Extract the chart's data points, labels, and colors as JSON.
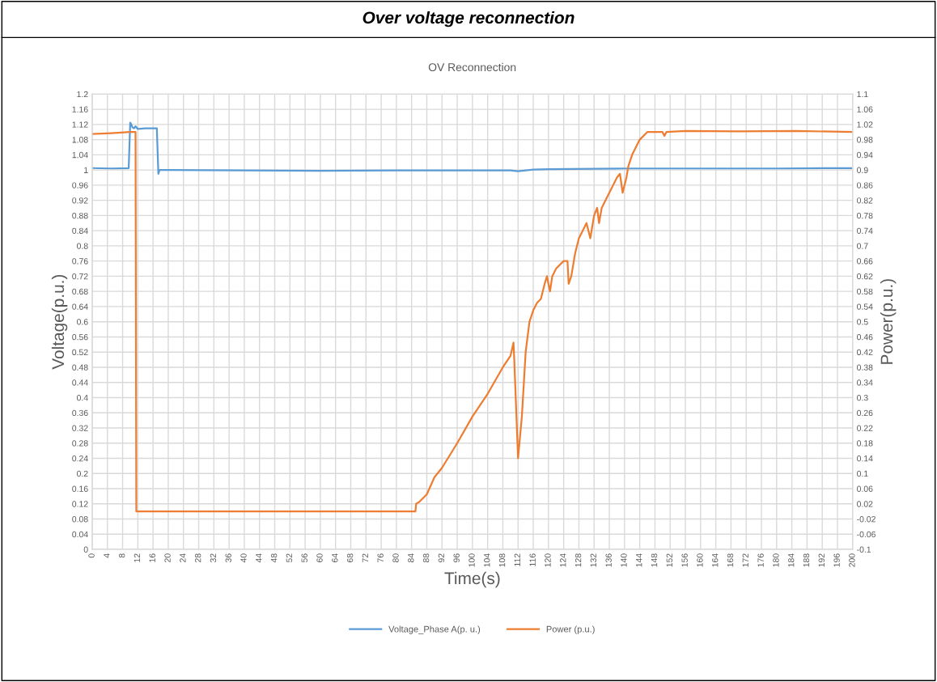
{
  "chart_data": {
    "type": "line",
    "title": "Over voltage reconnection",
    "subtitle": "OV Reconnection",
    "xlabel": "Time(s)",
    "ylabel": "Voltage(p.u.)",
    "y2label": "Power(p.u.)",
    "xlim": [
      0,
      200
    ],
    "xticks": [
      0,
      4,
      8,
      12,
      16,
      20,
      24,
      28,
      32,
      36,
      40,
      44,
      48,
      52,
      56,
      60,
      64,
      68,
      72,
      76,
      80,
      84,
      88,
      92,
      96,
      100,
      104,
      108,
      112,
      116,
      120,
      124,
      128,
      132,
      136,
      140,
      144,
      148,
      152,
      156,
      160,
      164,
      168,
      172,
      176,
      180,
      184,
      188,
      192,
      196,
      200
    ],
    "ylim": [
      0,
      1.2
    ],
    "yticks": [
      0,
      0.04,
      0.08,
      0.12,
      0.16,
      0.2,
      0.24,
      0.28,
      0.32,
      0.36,
      0.4,
      0.44,
      0.48,
      0.52,
      0.56,
      0.6,
      0.64,
      0.68,
      0.72,
      0.76,
      0.8,
      0.84,
      0.88,
      0.92,
      0.96,
      1,
      1.04,
      1.08,
      1.12,
      1.16,
      1.2
    ],
    "y2lim": [
      -0.1,
      1.1
    ],
    "y2ticks": [
      -0.1,
      -0.06,
      -0.02,
      0.02,
      0.06,
      0.1,
      0.14,
      0.18,
      0.22,
      0.26,
      0.3,
      0.34,
      0.38,
      0.42,
      0.46,
      0.5,
      0.54,
      0.58,
      0.62,
      0.66,
      0.7,
      0.74,
      0.78,
      0.82,
      0.86,
      0.9,
      0.94,
      0.98,
      1.02,
      1.06,
      1.1
    ],
    "grid": true,
    "legend": "bottom",
    "marker": "none",
    "line_style": "solid",
    "series": [
      {
        "name": "Voltage_Phase A(p. u.)",
        "color": "#5b9bd5",
        "x": [
          0,
          5,
          9.6,
          10,
          10.3,
          10.6,
          11,
          11.4,
          12,
          14,
          17,
          17.2,
          17.4,
          17.7,
          20,
          40,
          60,
          80,
          100,
          110,
          112,
          116,
          120,
          140,
          160,
          180,
          200
        ],
        "values": [
          1.005,
          1.004,
          1.005,
          1.125,
          1.12,
          1.112,
          1.11,
          1.115,
          1.108,
          1.11,
          1.11,
          1.05,
          0.99,
          1.0,
          1.0,
          0.999,
          0.998,
          0.999,
          0.999,
          0.999,
          0.997,
          1.001,
          1.002,
          1.004,
          1.004,
          1.004,
          1.005
        ]
      },
      {
        "name": "Power (p.u.)",
        "color": "#ed7d31",
        "axis": "y2",
        "x": [
          0,
          5,
          10,
          11,
          11.4,
          11.6,
          20,
          40,
          60,
          80,
          85,
          85.2,
          86,
          88,
          90,
          92,
          96,
          100,
          104,
          108,
          110,
          110.8,
          111,
          112,
          113,
          114,
          115,
          116,
          117,
          118,
          119,
          119.6,
          120.4,
          121,
          122,
          124,
          125,
          125.3,
          126,
          127,
          128,
          129,
          130,
          131,
          132,
          132.8,
          133.3,
          134,
          136,
          137,
          138,
          138.8,
          139.5,
          140.5,
          141,
          142,
          144,
          146,
          148,
          150,
          150.5,
          151,
          156,
          170,
          185,
          200
        ],
        "values": [
          0.995,
          0.997,
          1.0,
          1.0,
          1.0,
          0.0,
          0.0,
          0.0,
          0.0,
          0.0,
          0.0,
          0.02,
          0.025,
          0.045,
          0.09,
          0.115,
          0.18,
          0.25,
          0.31,
          0.38,
          0.41,
          0.445,
          0.4,
          0.14,
          0.25,
          0.42,
          0.5,
          0.53,
          0.55,
          0.56,
          0.6,
          0.62,
          0.58,
          0.62,
          0.64,
          0.66,
          0.66,
          0.6,
          0.62,
          0.68,
          0.72,
          0.74,
          0.76,
          0.72,
          0.78,
          0.8,
          0.76,
          0.8,
          0.84,
          0.86,
          0.88,
          0.89,
          0.84,
          0.88,
          0.91,
          0.94,
          0.98,
          1.0,
          1.0,
          1.0,
          0.99,
          1.0,
          1.003,
          1.002,
          1.003,
          1.0
        ]
      }
    ]
  }
}
